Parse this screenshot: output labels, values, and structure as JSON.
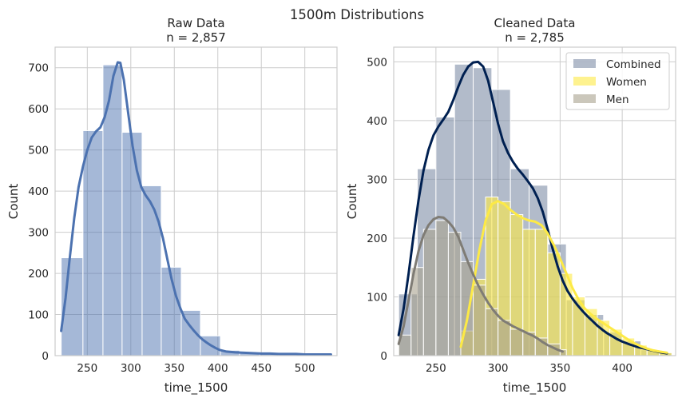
{
  "figure_title": "1500m Distributions",
  "chart_data": [
    {
      "type": "bar",
      "title_line1": "Raw Data",
      "title_line2": "n = 2,857",
      "xlabel": "time_1500",
      "ylabel": "Count",
      "xlim": [
        213,
        537
      ],
      "ylim": [
        0,
        750
      ],
      "xticks": [
        250,
        300,
        350,
        400,
        450,
        500
      ],
      "yticks": [
        0,
        100,
        200,
        300,
        400,
        500,
        600,
        700
      ],
      "grid": true,
      "bar_color": "#4c72b0",
      "series": [
        {
          "bins": [
            [
              220,
              245,
              238
            ],
            [
              245,
              268,
              547
            ],
            [
              268,
              290,
              707
            ],
            [
              290,
              313,
              543
            ],
            [
              313,
              335,
              413
            ],
            [
              335,
              358,
              215
            ],
            [
              358,
              380,
              110
            ],
            [
              380,
              403,
              48
            ],
            [
              403,
              425,
              13
            ],
            [
              425,
              448,
              7
            ],
            [
              448,
              470,
              4
            ],
            [
              470,
              493,
              3
            ],
            [
              493,
              515,
              2
            ],
            [
              515,
              530,
              2
            ]
          ],
          "kde": [
            [
              220,
              60
            ],
            [
              225,
              140
            ],
            [
              230,
              240
            ],
            [
              235,
              335
            ],
            [
              240,
              410
            ],
            [
              245,
              460
            ],
            [
              250,
              500
            ],
            [
              255,
              530
            ],
            [
              260,
              545
            ],
            [
              265,
              555
            ],
            [
              270,
              580
            ],
            [
              275,
              620
            ],
            [
              280,
              680
            ],
            [
              285,
              713
            ],
            [
              288,
              712
            ],
            [
              292,
              670
            ],
            [
              297,
              590
            ],
            [
              302,
              510
            ],
            [
              307,
              450
            ],
            [
              312,
              410
            ],
            [
              317,
              390
            ],
            [
              322,
              375
            ],
            [
              327,
              355
            ],
            [
              332,
              325
            ],
            [
              337,
              285
            ],
            [
              342,
              235
            ],
            [
              347,
              185
            ],
            [
              352,
              145
            ],
            [
              357,
              115
            ],
            [
              362,
              90
            ],
            [
              367,
              75
            ],
            [
              372,
              62
            ],
            [
              377,
              50
            ],
            [
              382,
              40
            ],
            [
              387,
              32
            ],
            [
              392,
              25
            ],
            [
              397,
              19
            ],
            [
              402,
              14
            ],
            [
              410,
              10
            ],
            [
              420,
              8
            ],
            [
              430,
              7
            ],
            [
              440,
              6
            ],
            [
              450,
              5
            ],
            [
              460,
              5
            ],
            [
              470,
              4
            ],
            [
              480,
              4
            ],
            [
              490,
              4
            ],
            [
              500,
              3
            ],
            [
              510,
              3
            ],
            [
              520,
              3
            ],
            [
              530,
              3
            ]
          ]
        }
      ]
    },
    {
      "type": "bar",
      "title_line1": "Cleaned Data",
      "title_line2": "n = 2,785",
      "xlabel": "time_1500",
      "ylabel": "Count",
      "xlim": [
        216,
        443
      ],
      "ylim": [
        0,
        525
      ],
      "xticks": [
        250,
        300,
        350,
        400
      ],
      "yticks": [
        0,
        100,
        200,
        300,
        400,
        500
      ],
      "grid": true,
      "legend_position": "top-right",
      "series": [
        {
          "name": "Combined",
          "color": "#7f8ea6",
          "line_color": "#002051",
          "bins": [
            [
              220,
              235,
              105
            ],
            [
              235,
              250,
              318
            ],
            [
              250,
              265,
              406
            ],
            [
              265,
              280,
              496
            ],
            [
              280,
              295,
              490
            ],
            [
              295,
              310,
              453
            ],
            [
              310,
              325,
              318
            ],
            [
              325,
              340,
              290
            ],
            [
              340,
              355,
              190
            ],
            [
              355,
              370,
              95
            ],
            [
              370,
              385,
              70
            ],
            [
              385,
              400,
              40
            ],
            [
              400,
              415,
              25
            ],
            [
              415,
              430,
              10
            ],
            [
              430,
              440,
              5
            ]
          ],
          "kde": [
            [
              220,
              35
            ],
            [
              224,
              80
            ],
            [
              228,
              140
            ],
            [
              232,
              205
            ],
            [
              236,
              265
            ],
            [
              240,
              315
            ],
            [
              244,
              350
            ],
            [
              248,
              375
            ],
            [
              252,
              390
            ],
            [
              256,
              402
            ],
            [
              260,
              415
            ],
            [
              264,
              435
            ],
            [
              268,
              458
            ],
            [
              272,
              478
            ],
            [
              276,
              492
            ],
            [
              280,
              499
            ],
            [
              284,
              500
            ],
            [
              288,
              492
            ],
            [
              292,
              468
            ],
            [
              296,
              432
            ],
            [
              300,
              395
            ],
            [
              304,
              365
            ],
            [
              308,
              345
            ],
            [
              312,
              330
            ],
            [
              316,
              318
            ],
            [
              320,
              308
            ],
            [
              324,
              297
            ],
            [
              328,
              285
            ],
            [
              332,
              268
            ],
            [
              336,
              245
            ],
            [
              340,
              215
            ],
            [
              344,
              182
            ],
            [
              348,
              152
            ],
            [
              352,
              128
            ],
            [
              356,
              110
            ],
            [
              360,
              97
            ],
            [
              364,
              86
            ],
            [
              368,
              76
            ],
            [
              372,
              67
            ],
            [
              376,
              59
            ],
            [
              380,
              51
            ],
            [
              384,
              44
            ],
            [
              388,
              38
            ],
            [
              392,
              33
            ],
            [
              396,
              28
            ],
            [
              400,
              24
            ],
            [
              406,
              19
            ],
            [
              412,
              15
            ],
            [
              418,
              12
            ],
            [
              424,
              9
            ],
            [
              430,
              6
            ],
            [
              436,
              4
            ]
          ]
        },
        {
          "name": "Women",
          "color": "#fdea45",
          "line_color": "#fdea45",
          "bins": [
            [
              270,
              280,
              42
            ],
            [
              280,
              290,
              130
            ],
            [
              290,
              300,
              270
            ],
            [
              300,
              310,
              262
            ],
            [
              310,
              320,
              240
            ],
            [
              320,
              330,
              215
            ],
            [
              330,
              340,
              215
            ],
            [
              340,
              350,
              175
            ],
            [
              350,
              360,
              140
            ],
            [
              360,
              370,
              100
            ],
            [
              370,
              380,
              80
            ],
            [
              380,
              390,
              60
            ],
            [
              390,
              400,
              45
            ],
            [
              400,
              410,
              30
            ],
            [
              410,
              420,
              18
            ],
            [
              420,
              430,
              10
            ],
            [
              430,
              440,
              5
            ]
          ],
          "kde": [
            [
              270,
              15
            ],
            [
              275,
              60
            ],
            [
              280,
              120
            ],
            [
              285,
              180
            ],
            [
              290,
              230
            ],
            [
              295,
              258
            ],
            [
              300,
              263
            ],
            [
              305,
              258
            ],
            [
              310,
              248
            ],
            [
              315,
              240
            ],
            [
              320,
              234
            ],
            [
              325,
              230
            ],
            [
              330,
              228
            ],
            [
              335,
              222
            ],
            [
              340,
              208
            ],
            [
              345,
              188
            ],
            [
              350,
              165
            ],
            [
              355,
              140
            ],
            [
              360,
              115
            ],
            [
              365,
              95
            ],
            [
              370,
              80
            ],
            [
              375,
              70
            ],
            [
              380,
              62
            ],
            [
              385,
              55
            ],
            [
              390,
              48
            ],
            [
              395,
              41
            ],
            [
              400,
              34
            ],
            [
              405,
              27
            ],
            [
              410,
              21
            ],
            [
              415,
              16
            ],
            [
              420,
              12
            ],
            [
              425,
              9
            ],
            [
              430,
              7
            ],
            [
              436,
              5
            ]
          ]
        },
        {
          "name": "Men",
          "color": "#a9a28e",
          "line_color": "#7f7c75",
          "bins": [
            [
              220,
              230,
              35
            ],
            [
              230,
              240,
              150
            ],
            [
              240,
              250,
              215
            ],
            [
              250,
              260,
              230
            ],
            [
              260,
              270,
              210
            ],
            [
              270,
              280,
              160
            ],
            [
              280,
              290,
              120
            ],
            [
              290,
              300,
              80
            ],
            [
              300,
              310,
              60
            ],
            [
              310,
              320,
              45
            ],
            [
              320,
              330,
              40
            ],
            [
              330,
              340,
              30
            ],
            [
              340,
              350,
              20
            ],
            [
              350,
              355,
              10
            ]
          ],
          "kde": [
            [
              220,
              20
            ],
            [
              224,
              50
            ],
            [
              228,
              95
            ],
            [
              232,
              140
            ],
            [
              236,
              178
            ],
            [
              240,
              205
            ],
            [
              244,
              222
            ],
            [
              248,
              232
            ],
            [
              252,
              236
            ],
            [
              256,
              235
            ],
            [
              260,
              228
            ],
            [
              264,
              218
            ],
            [
              268,
              202
            ],
            [
              272,
              180
            ],
            [
              276,
              158
            ],
            [
              280,
              138
            ],
            [
              284,
              120
            ],
            [
              288,
              104
            ],
            [
              292,
              90
            ],
            [
              296,
              78
            ],
            [
              300,
              68
            ],
            [
              304,
              60
            ],
            [
              308,
              55
            ],
            [
              312,
              50
            ],
            [
              316,
              46
            ],
            [
              320,
              42
            ],
            [
              324,
              38
            ],
            [
              328,
              34
            ],
            [
              332,
              29
            ],
            [
              336,
              23
            ],
            [
              340,
              18
            ],
            [
              344,
              14
            ],
            [
              348,
              10
            ],
            [
              352,
              7
            ]
          ]
        }
      ]
    }
  ]
}
